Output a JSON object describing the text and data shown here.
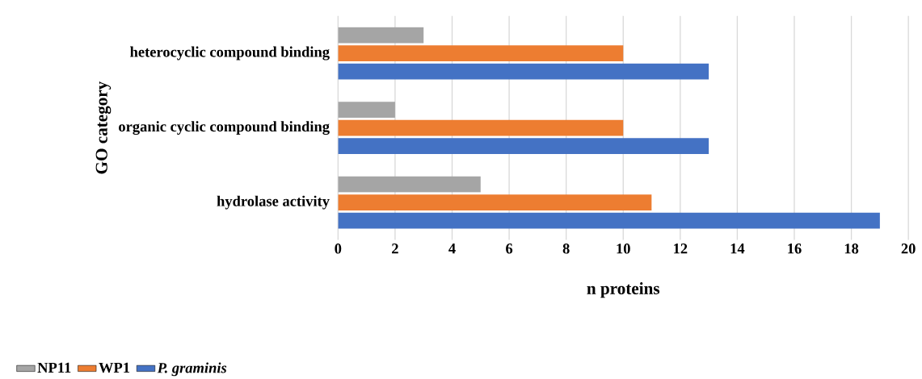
{
  "chart_data": {
    "type": "bar",
    "orientation": "horizontal",
    "categories": [
      "heterocyclic compound binding",
      "organic cyclic compound binding",
      "hydrolase activity"
    ],
    "series": [
      {
        "name": "NP11",
        "color": "#a5a5a5",
        "values": [
          3,
          2,
          5
        ]
      },
      {
        "name": "WP1",
        "color": "#ed7d31",
        "values": [
          10,
          10,
          11
        ]
      },
      {
        "name": "*P. graminis*",
        "color": "#4472c4",
        "values": [
          13,
          13,
          19
        ]
      }
    ],
    "xlabel": "n proteins",
    "ylabel": "GO category",
    "xlim": [
      0,
      20
    ],
    "xticks": [
      0,
      2,
      4,
      6,
      8,
      10,
      12,
      14,
      16,
      18,
      20
    ],
    "grid": "x",
    "legend": "bottom left"
  }
}
